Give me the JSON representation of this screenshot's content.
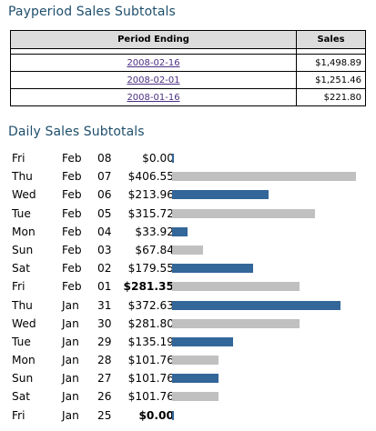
{
  "payperiod": {
    "title": "Payperiod Sales Subtotals",
    "headers": {
      "period": "Period Ending",
      "sales": "Sales"
    },
    "rows": [
      {
        "date": "2008-02-16",
        "sales": "$1,498.89"
      },
      {
        "date": "2008-02-01",
        "sales": "$1,251.46"
      },
      {
        "date": "2008-01-16",
        "sales": "$221.80"
      }
    ],
    "link_color": "#4b2e83"
  },
  "daily": {
    "title": "Daily Sales Subtotals",
    "colors": {
      "highlight": "#336699",
      "normal": "#c0c0c0",
      "title": "#1f4f6d"
    },
    "max_value": 406.55,
    "rows": [
      {
        "dow": "Fri",
        "month": "Feb",
        "day": "08",
        "amount": "$0.00",
        "value": 0.0,
        "highlight": true,
        "bold": false
      },
      {
        "dow": "Thu",
        "month": "Feb",
        "day": "07",
        "amount": "$406.55",
        "value": 406.55,
        "highlight": false,
        "bold": false
      },
      {
        "dow": "Wed",
        "month": "Feb",
        "day": "06",
        "amount": "$213.96",
        "value": 213.96,
        "highlight": true,
        "bold": false
      },
      {
        "dow": "Tue",
        "month": "Feb",
        "day": "05",
        "amount": "$315.72",
        "value": 315.72,
        "highlight": false,
        "bold": false
      },
      {
        "dow": "Mon",
        "month": "Feb",
        "day": "04",
        "amount": "$33.92",
        "value": 33.92,
        "highlight": true,
        "bold": false
      },
      {
        "dow": "Sun",
        "month": "Feb",
        "day": "03",
        "amount": "$67.84",
        "value": 67.84,
        "highlight": false,
        "bold": false
      },
      {
        "dow": "Sat",
        "month": "Feb",
        "day": "02",
        "amount": "$179.55",
        "value": 179.55,
        "highlight": true,
        "bold": false
      },
      {
        "dow": "Fri",
        "month": "Feb",
        "day": "01",
        "amount": "$281.35",
        "value": 281.35,
        "highlight": false,
        "bold": true
      },
      {
        "dow": "Thu",
        "month": "Jan",
        "day": "31",
        "amount": "$372.63",
        "value": 372.63,
        "highlight": true,
        "bold": false
      },
      {
        "dow": "Wed",
        "month": "Jan",
        "day": "30",
        "amount": "$281.80",
        "value": 281.8,
        "highlight": false,
        "bold": false
      },
      {
        "dow": "Tue",
        "month": "Jan",
        "day": "29",
        "amount": "$135.19",
        "value": 135.19,
        "highlight": true,
        "bold": false
      },
      {
        "dow": "Mon",
        "month": "Jan",
        "day": "28",
        "amount": "$101.76",
        "value": 101.76,
        "highlight": false,
        "bold": false
      },
      {
        "dow": "Sun",
        "month": "Jan",
        "day": "27",
        "amount": "$101.76",
        "value": 101.76,
        "highlight": true,
        "bold": false
      },
      {
        "dow": "Sat",
        "month": "Jan",
        "day": "26",
        "amount": "$101.76",
        "value": 101.76,
        "highlight": false,
        "bold": false
      },
      {
        "dow": "Fri",
        "month": "Jan",
        "day": "25",
        "amount": "$0.00",
        "value": 0.0,
        "highlight": true,
        "bold": true
      }
    ]
  }
}
